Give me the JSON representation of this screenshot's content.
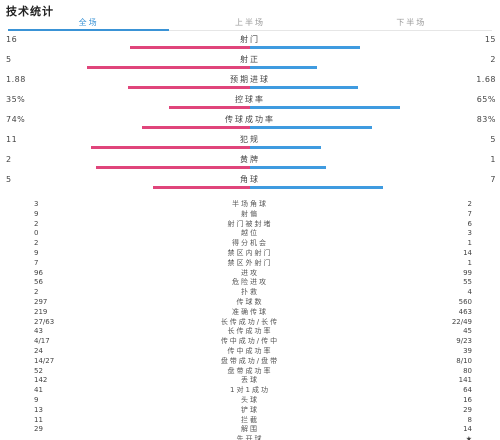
{
  "header": {
    "title": "技术统计"
  },
  "tabs": [
    {
      "label": "全场",
      "active": true
    },
    {
      "label": "上半场",
      "active": false
    },
    {
      "label": "下半场",
      "active": false
    }
  ],
  "colors": {
    "home": "#e0457b",
    "away": "#3f9be0",
    "accent": "#3a93d6"
  },
  "bar_stats": [
    {
      "label": "射门",
      "home": "16",
      "away": "15",
      "home_share": 0.52,
      "away_share": 0.48
    },
    {
      "label": "射正",
      "home": "5",
      "away": "2",
      "home_share": 0.71,
      "away_share": 0.29
    },
    {
      "label": "预期进球",
      "home": "1.88",
      "away": "1.68",
      "home_share": 0.53,
      "away_share": 0.47
    },
    {
      "label": "控球率",
      "home": "35%",
      "away": "65%",
      "home_share": 0.35,
      "away_share": 0.65
    },
    {
      "label": "传球成功率",
      "home": "74%",
      "away": "83%",
      "home_share": 0.47,
      "away_share": 0.53
    },
    {
      "label": "犯规",
      "home": "11",
      "away": "5",
      "home_share": 0.69,
      "away_share": 0.31
    },
    {
      "label": "黄牌",
      "home": "2",
      "away": "1",
      "home_share": 0.67,
      "away_share": 0.33
    },
    {
      "label": "角球",
      "home": "5",
      "away": "7",
      "home_share": 0.42,
      "away_share": 0.58
    }
  ],
  "list_stats": [
    {
      "label": "半场角球",
      "home": "3",
      "away": "2"
    },
    {
      "label": "射偏",
      "home": "9",
      "away": "7"
    },
    {
      "label": "射门被封堵",
      "home": "2",
      "away": "6"
    },
    {
      "label": "越位",
      "home": "0",
      "away": "3"
    },
    {
      "label": "得分机会",
      "home": "2",
      "away": "1"
    },
    {
      "label": "禁区内射门",
      "home": "9",
      "away": "14"
    },
    {
      "label": "禁区外射门",
      "home": "7",
      "away": "1"
    },
    {
      "label": "进攻",
      "home": "96",
      "away": "99"
    },
    {
      "label": "危险进攻",
      "home": "56",
      "away": "55"
    },
    {
      "label": "扑救",
      "home": "2",
      "away": "4"
    },
    {
      "label": "传球数",
      "home": "297",
      "away": "560"
    },
    {
      "label": "准确传球",
      "home": "219",
      "away": "463"
    },
    {
      "label": "长传成功/长传",
      "home": "27/63",
      "away": "22/49"
    },
    {
      "label": "长传成功率",
      "home": "43",
      "away": "45"
    },
    {
      "label": "传中成功/传中",
      "home": "4/17",
      "away": "9/23"
    },
    {
      "label": "传中成功率",
      "home": "24",
      "away": "39"
    },
    {
      "label": "盘带成功/盘带",
      "home": "14/27",
      "away": "8/10"
    },
    {
      "label": "盘带成功率",
      "home": "52",
      "away": "80"
    },
    {
      "label": "丢球",
      "home": "142",
      "away": "141"
    },
    {
      "label": "1对1成功",
      "home": "41",
      "away": "64"
    },
    {
      "label": "头球",
      "home": "9",
      "away": "16"
    },
    {
      "label": "铲球",
      "home": "13",
      "away": "29"
    },
    {
      "label": "拦截",
      "home": "11",
      "away": "8"
    },
    {
      "label": "解围",
      "home": "29",
      "away": "14"
    },
    {
      "label": "先开球",
      "home": "",
      "away": "★"
    }
  ]
}
